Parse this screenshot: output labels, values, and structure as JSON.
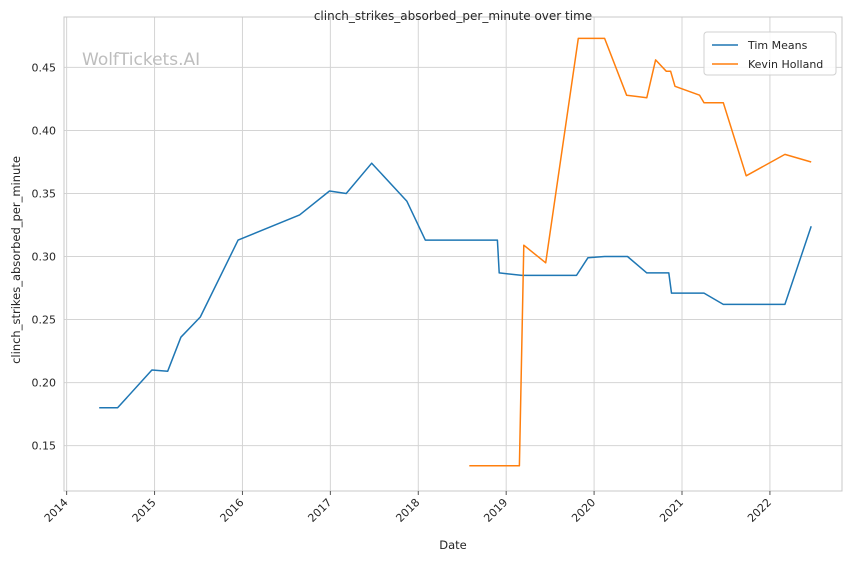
{
  "chart_data": {
    "type": "line",
    "title": "clinch_strikes_absorbed_per_minute over time",
    "xlabel": "Date",
    "ylabel": "clinch_strikes_absorbed_per_minute",
    "watermark": "WolfTickets.AI",
    "xlim": [
      2013.97,
      2022.82
    ],
    "ylim": [
      0.114,
      0.49
    ],
    "x_ticks": [
      2014,
      2015,
      2016,
      2017,
      2018,
      2019,
      2020,
      2021,
      2022
    ],
    "x_tick_labels": [
      "2014",
      "2015",
      "2016",
      "2017",
      "2018",
      "2019",
      "2020",
      "2021",
      "2022"
    ],
    "y_ticks": [
      0.15,
      0.2,
      0.25,
      0.3,
      0.35,
      0.4,
      0.45
    ],
    "y_tick_labels": [
      "0.15",
      "0.20",
      "0.25",
      "0.30",
      "0.35",
      "0.40",
      "0.45"
    ],
    "grid": true,
    "legend_position": "top-right",
    "series": [
      {
        "name": "Tim Means",
        "color": "#1f77b4",
        "x": [
          2014.37,
          2014.58,
          2014.97,
          2015.15,
          2015.3,
          2015.52,
          2015.95,
          2016.65,
          2016.99,
          2017.18,
          2017.47,
          2017.87,
          2018.08,
          2018.9,
          2018.92,
          2019.18,
          2019.5,
          2019.8,
          2019.93,
          2020.12,
          2020.38,
          2020.6,
          2020.85,
          2020.88,
          2021.25,
          2021.47,
          2022.17,
          2022.47
        ],
        "y": [
          0.18,
          0.18,
          0.21,
          0.209,
          0.236,
          0.252,
          0.313,
          0.333,
          0.352,
          0.35,
          0.374,
          0.344,
          0.313,
          0.313,
          0.287,
          0.285,
          0.285,
          0.285,
          0.299,
          0.3,
          0.3,
          0.287,
          0.287,
          0.271,
          0.271,
          0.262,
          0.262,
          0.324
        ]
      },
      {
        "name": "Kevin Holland",
        "color": "#ff7f0e",
        "x": [
          2018.58,
          2019.15,
          2019.2,
          2019.45,
          2019.82,
          2020.12,
          2020.37,
          2020.6,
          2020.7,
          2020.82,
          2020.87,
          2020.92,
          2021.2,
          2021.25,
          2021.47,
          2021.73,
          2022.17,
          2022.47
        ],
        "y": [
          0.134,
          0.134,
          0.309,
          0.295,
          0.473,
          0.473,
          0.428,
          0.426,
          0.456,
          0.447,
          0.447,
          0.435,
          0.428,
          0.422,
          0.422,
          0.364,
          0.381,
          0.375
        ]
      }
    ]
  }
}
